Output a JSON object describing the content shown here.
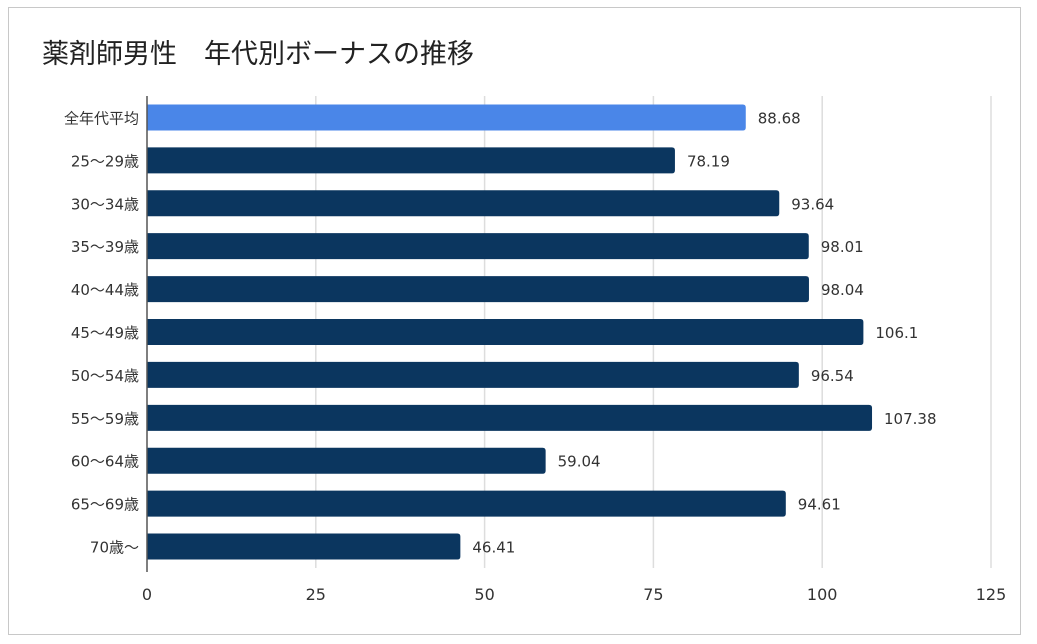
{
  "chart_data": {
    "type": "bar",
    "orientation": "horizontal",
    "title": "薬剤師男性　年代別ボーナスの推移",
    "categories": [
      "全年代平均",
      "25～29歳",
      "30～34歳",
      "35～39歳",
      "40～44歳",
      "45～49歳",
      "50～54歳",
      "55～59歳",
      "60～64歳",
      "65～69歳",
      "70歳～"
    ],
    "values": [
      88.68,
      78.19,
      93.64,
      98.01,
      98.04,
      106.1,
      96.54,
      107.38,
      59.04,
      94.61,
      46.41
    ],
    "value_labels": [
      "88.68",
      "78.19",
      "93.64",
      "98.01",
      "98.04",
      "106.1",
      "96.54",
      "107.38",
      "59.04",
      "94.61",
      "46.41"
    ],
    "xlim": [
      0,
      125
    ],
    "xticks": [
      "0",
      "25",
      "50",
      "75",
      "100",
      "125"
    ],
    "xtick_values": [
      0,
      25,
      50,
      75,
      100,
      125
    ],
    "grid": true,
    "legend": "none",
    "colors": {
      "highlight": "#4a86e8",
      "bar": "#0b365f",
      "grid": "#dddddd",
      "axis": "#555555"
    }
  }
}
